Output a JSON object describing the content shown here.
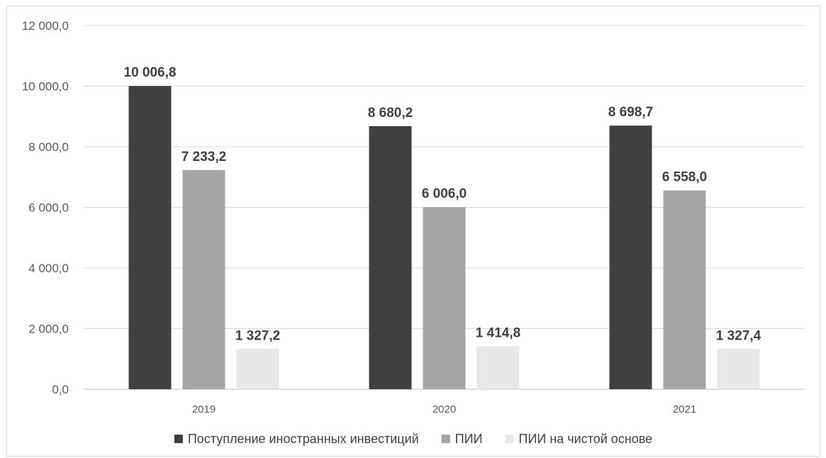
{
  "chart_data": {
    "type": "bar",
    "title": "",
    "xlabel": "",
    "ylabel": "",
    "categories": [
      "2019",
      "2020",
      "2021"
    ],
    "series": [
      {
        "name": "Поступление иностранных инвестиций",
        "color": "#404040",
        "values": [
          10006.8,
          8680.2,
          8698.7
        ],
        "labels": [
          "10 006,8",
          "8 680,2",
          "8 698,7"
        ]
      },
      {
        "name": "ПИИ",
        "color": "#a6a6a6",
        "values": [
          7233.2,
          6006.0,
          6558.0
        ],
        "labels": [
          "7 233,2",
          "6 006,0",
          "6 558,0"
        ]
      },
      {
        "name": "ПИИ на чистой основе",
        "color": "#e7e7e7",
        "values": [
          1327.2,
          1414.8,
          1327.4
        ],
        "labels": [
          "1 327,2",
          "1 414,8",
          "1 327,4"
        ]
      }
    ],
    "ylim": [
      0,
      12000
    ],
    "yticks": [
      0,
      2000,
      4000,
      6000,
      8000,
      10000,
      12000
    ],
    "ytick_labels": [
      "0,0",
      "2 000,0",
      "4 000,0",
      "6 000,0",
      "8 000,0",
      "10 000,0",
      "12 000,0"
    ],
    "grid": true,
    "legend_position": "bottom"
  }
}
